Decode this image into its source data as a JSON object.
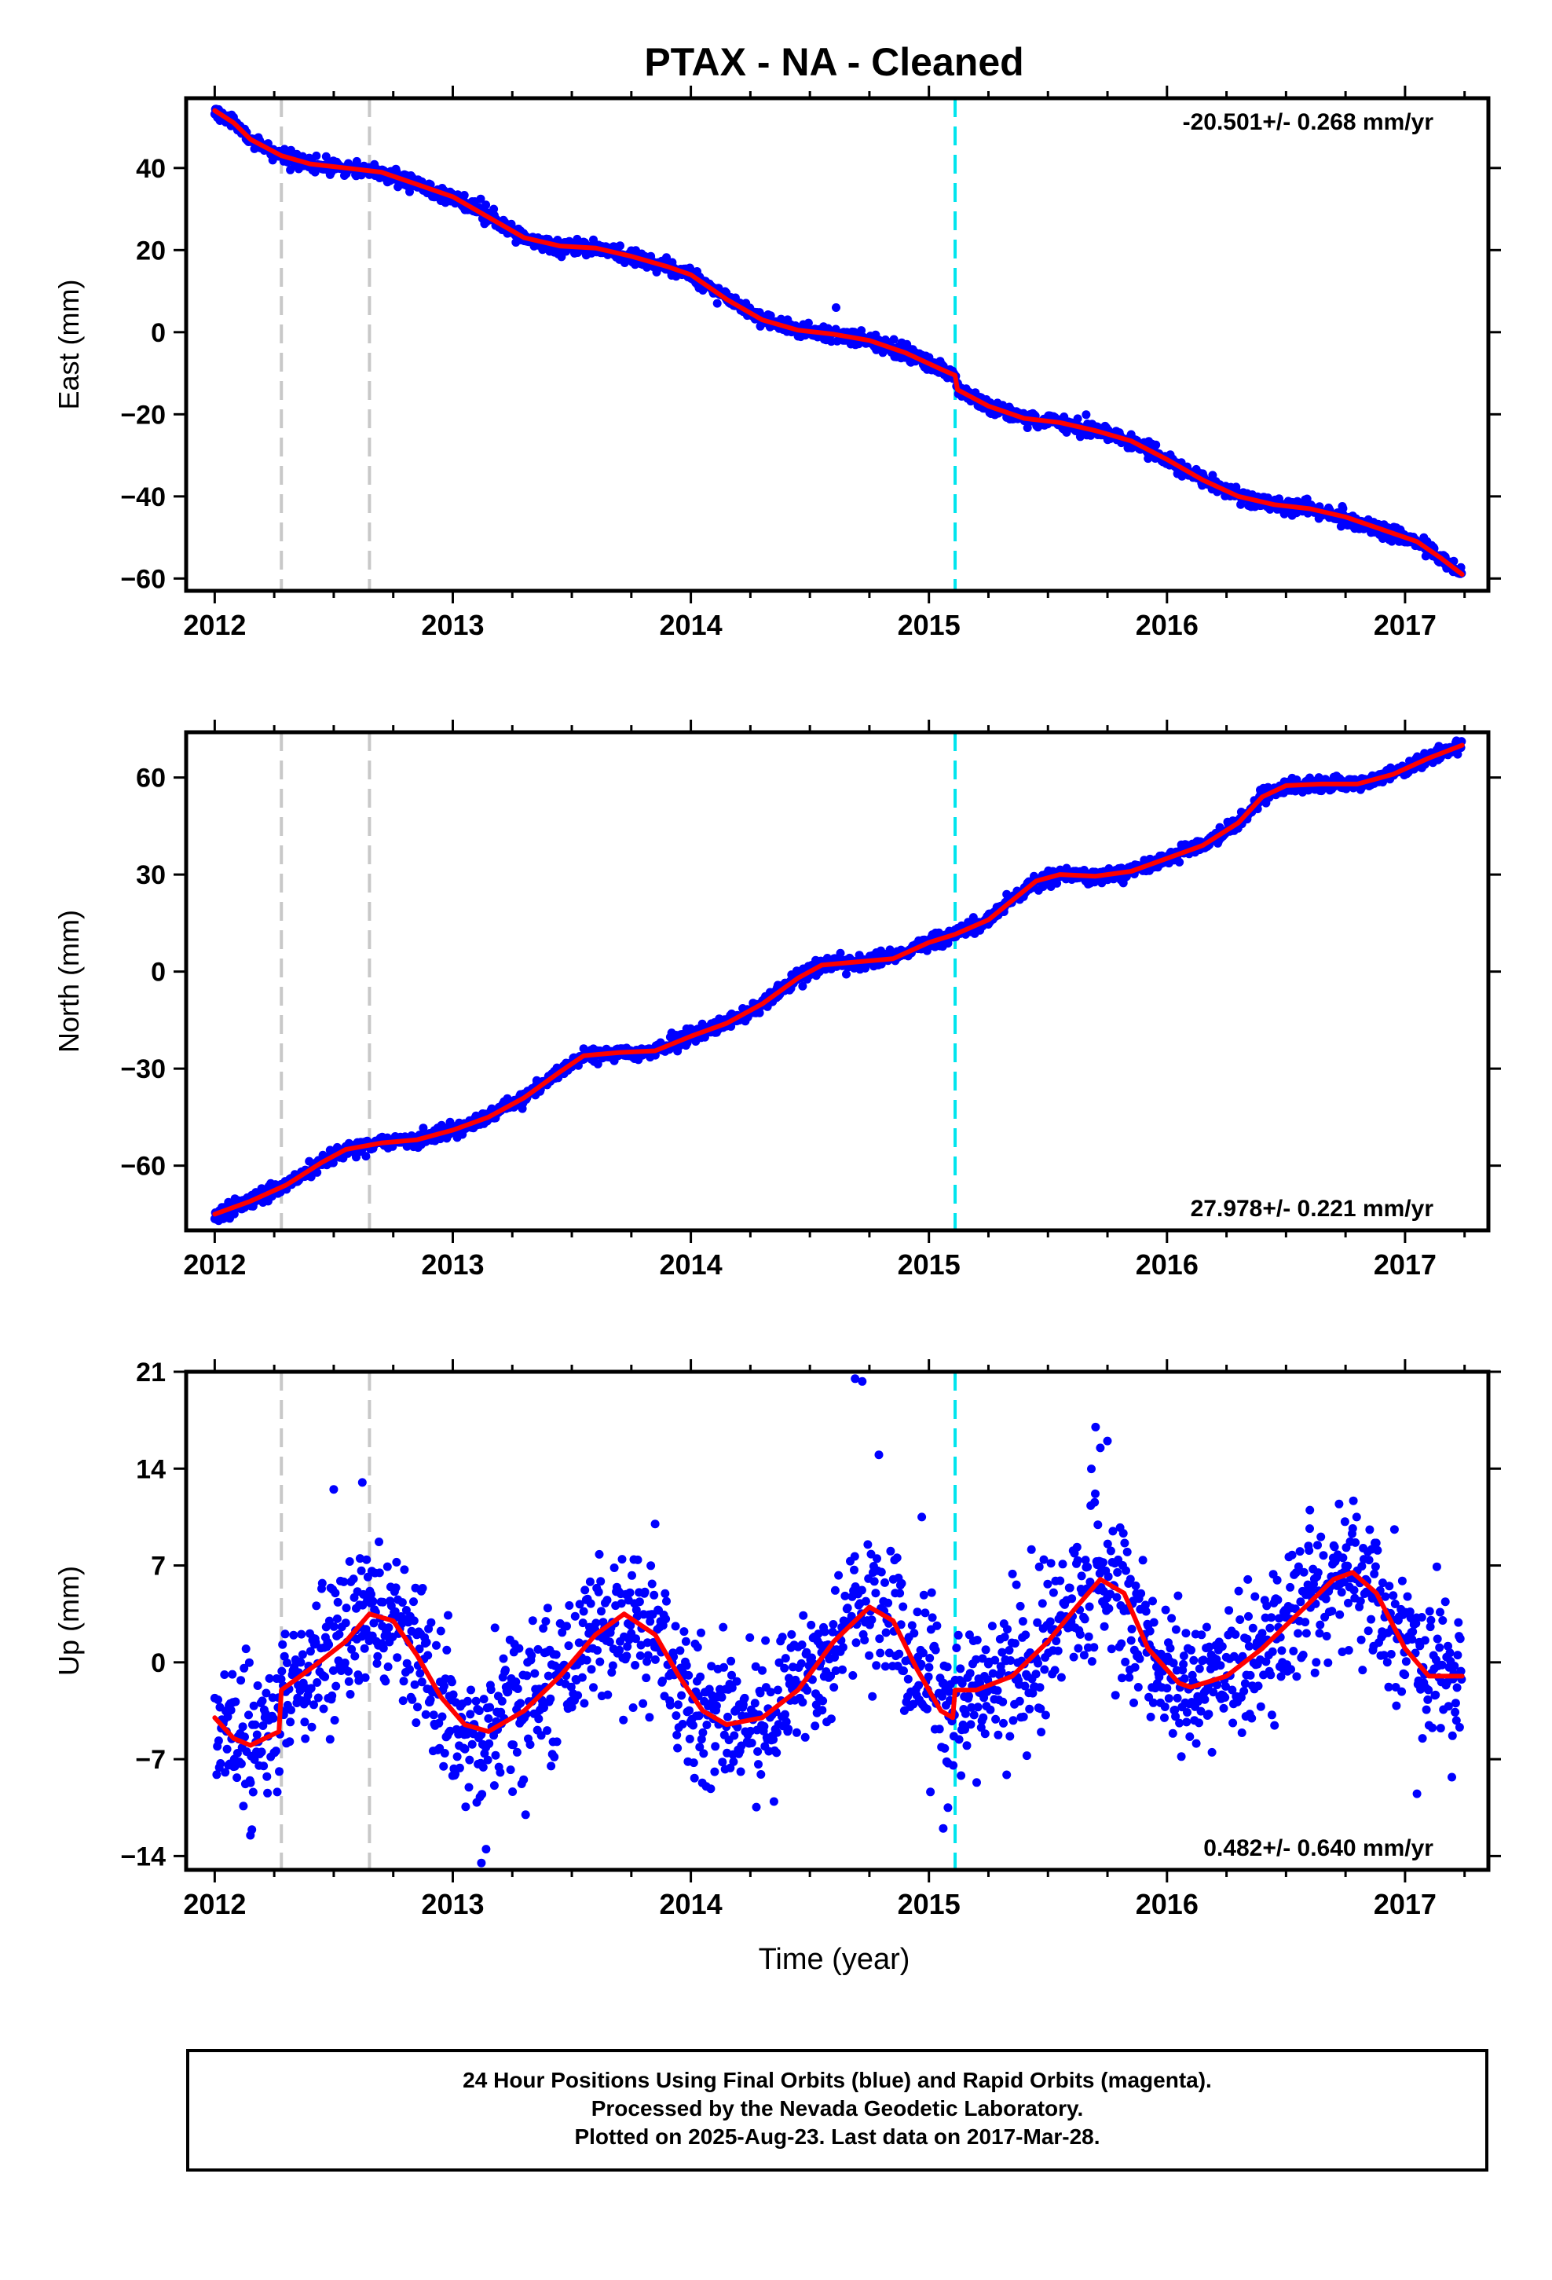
{
  "title": "PTAX  - NA - Cleaned",
  "xlabel": "Time (year)",
  "footer": {
    "line1": "24 Hour Positions Using Final Orbits (blue) and Rapid Orbits (magenta).",
    "line2": "Processed by the Nevada Geodetic Laboratory.",
    "line3": "Plotted on 2025-Aug-23. Last data on 2017-Mar-28."
  },
  "colors": {
    "data_points": "#0000ff",
    "model_fit": "#ff0000",
    "equipment_change": "#c8c8c8",
    "earthquake": "#00e5ee"
  },
  "chart_data": [
    {
      "type": "scatter",
      "ylabel": "East (mm)",
      "rate_label": "-20.501+/- 0.268 mm/yr",
      "rate_position": "top-right",
      "xlim": [
        2011.88,
        2017.35
      ],
      "ylim": [
        -63,
        57
      ],
      "xticks": [
        2012,
        2013,
        2014,
        2015,
        2016,
        2017
      ],
      "yticks": [
        -60,
        -40,
        -20,
        0,
        20,
        40
      ],
      "ytick_labels": [
        "−60",
        "−40",
        "−20",
        "0",
        "20",
        "40"
      ],
      "vlines_gray": [
        2012.28,
        2012.65
      ],
      "vlines_cyan": [
        2015.11
      ],
      "fit": [
        [
          2012.0,
          54
        ],
        [
          2012.08,
          51
        ],
        [
          2012.15,
          47
        ],
        [
          2012.28,
          43
        ],
        [
          2012.4,
          41
        ],
        [
          2012.55,
          40
        ],
        [
          2012.7,
          39
        ],
        [
          2012.85,
          36
        ],
        [
          2013.0,
          33
        ],
        [
          2013.15,
          28
        ],
        [
          2013.3,
          23
        ],
        [
          2013.45,
          21
        ],
        [
          2013.6,
          20.5
        ],
        [
          2013.75,
          18.5
        ],
        [
          2013.9,
          16
        ],
        [
          2014.0,
          14
        ],
        [
          2014.15,
          8
        ],
        [
          2014.3,
          3
        ],
        [
          2014.45,
          0.5
        ],
        [
          2014.6,
          -0.5
        ],
        [
          2014.75,
          -2
        ],
        [
          2014.9,
          -5
        ],
        [
          2015.05,
          -9
        ],
        [
          2015.11,
          -10.5
        ],
        [
          2015.12,
          -14
        ],
        [
          2015.25,
          -18
        ],
        [
          2015.4,
          -21
        ],
        [
          2015.55,
          -22
        ],
        [
          2015.7,
          -24
        ],
        [
          2015.85,
          -26.5
        ],
        [
          2016.0,
          -31
        ],
        [
          2016.15,
          -36
        ],
        [
          2016.3,
          -40
        ],
        [
          2016.45,
          -42
        ],
        [
          2016.6,
          -43
        ],
        [
          2016.75,
          -45
        ],
        [
          2016.9,
          -48
        ],
        [
          2017.05,
          -51
        ],
        [
          2017.15,
          -55
        ],
        [
          2017.24,
          -59
        ]
      ],
      "outliers": [
        [
          2014.61,
          6
        ]
      ],
      "noise_mm": 0.9,
      "seed": 11
    },
    {
      "type": "scatter",
      "ylabel": "North (mm)",
      "rate_label": "27.978+/- 0.221 mm/yr",
      "rate_position": "bottom-right",
      "xlim": [
        2011.88,
        2017.35
      ],
      "ylim": [
        -80,
        74
      ],
      "xticks": [
        2012,
        2013,
        2014,
        2015,
        2016,
        2017
      ],
      "yticks": [
        -60,
        -30,
        0,
        30,
        60
      ],
      "ytick_labels": [
        "−60",
        "−30",
        "0",
        "30",
        "60"
      ],
      "vlines_gray": [
        2012.28,
        2012.65
      ],
      "vlines_cyan": [
        2015.11
      ],
      "fit": [
        [
          2012.0,
          -75
        ],
        [
          2012.15,
          -71
        ],
        [
          2012.3,
          -66
        ],
        [
          2012.45,
          -59
        ],
        [
          2012.55,
          -55
        ],
        [
          2012.7,
          -53
        ],
        [
          2012.85,
          -52
        ],
        [
          2013.0,
          -49
        ],
        [
          2013.15,
          -45
        ],
        [
          2013.3,
          -39
        ],
        [
          2013.45,
          -31
        ],
        [
          2013.55,
          -26
        ],
        [
          2013.7,
          -25
        ],
        [
          2013.85,
          -24.5
        ],
        [
          2014.0,
          -20
        ],
        [
          2014.15,
          -16
        ],
        [
          2014.3,
          -10
        ],
        [
          2014.45,
          -2
        ],
        [
          2014.55,
          2
        ],
        [
          2014.7,
          3
        ],
        [
          2014.85,
          4
        ],
        [
          2015.0,
          9
        ],
        [
          2015.11,
          11.5
        ],
        [
          2015.25,
          16
        ],
        [
          2015.35,
          22
        ],
        [
          2015.45,
          28
        ],
        [
          2015.55,
          30
        ],
        [
          2015.7,
          29.5
        ],
        [
          2015.85,
          31
        ],
        [
          2016.0,
          35
        ],
        [
          2016.15,
          39
        ],
        [
          2016.3,
          46
        ],
        [
          2016.4,
          54
        ],
        [
          2016.5,
          57.5
        ],
        [
          2016.65,
          58
        ],
        [
          2016.8,
          58
        ],
        [
          2016.95,
          61
        ],
        [
          2017.1,
          66
        ],
        [
          2017.24,
          70
        ]
      ],
      "outliers": [],
      "noise_mm": 1.1,
      "seed": 23
    },
    {
      "type": "scatter",
      "ylabel": "Up (mm)",
      "rate_label": "0.482+/- 0.640 mm/yr",
      "rate_position": "bottom-right",
      "xlim": [
        2011.88,
        2017.35
      ],
      "ylim": [
        -15,
        21
      ],
      "xticks": [
        2012,
        2013,
        2014,
        2015,
        2016,
        2017
      ],
      "yticks": [
        -14,
        -7,
        0,
        7,
        14,
        21
      ],
      "ytick_labels": [
        "−14",
        "−7",
        "0",
        "7",
        "14",
        "21"
      ],
      "vlines_gray": [
        2012.28,
        2012.65
      ],
      "vlines_cyan": [
        2015.11
      ],
      "fit": [
        [
          2012.0,
          -4
        ],
        [
          2012.08,
          -5.5
        ],
        [
          2012.15,
          -6
        ],
        [
          2012.27,
          -5
        ],
        [
          2012.28,
          -2
        ],
        [
          2012.4,
          -0.5
        ],
        [
          2012.55,
          1.5
        ],
        [
          2012.65,
          3.5
        ],
        [
          2012.75,
          3
        ],
        [
          2012.85,
          0.5
        ],
        [
          2012.95,
          -2.5
        ],
        [
          2013.05,
          -4.5
        ],
        [
          2013.15,
          -5
        ],
        [
          2013.3,
          -3.5
        ],
        [
          2013.45,
          -1
        ],
        [
          2013.6,
          2
        ],
        [
          2013.72,
          3.5
        ],
        [
          2013.85,
          2
        ],
        [
          2013.95,
          -1
        ],
        [
          2014.05,
          -3.5
        ],
        [
          2014.15,
          -4.5
        ],
        [
          2014.3,
          -4
        ],
        [
          2014.45,
          -2
        ],
        [
          2014.6,
          1.5
        ],
        [
          2014.75,
          4
        ],
        [
          2014.85,
          3
        ],
        [
          2014.95,
          -0.5
        ],
        [
          2015.05,
          -3.5
        ],
        [
          2015.1,
          -4
        ],
        [
          2015.11,
          -2
        ],
        [
          2015.2,
          -2
        ],
        [
          2015.35,
          -1
        ],
        [
          2015.5,
          1.5
        ],
        [
          2015.62,
          4
        ],
        [
          2015.72,
          6
        ],
        [
          2015.82,
          5
        ],
        [
          2015.92,
          1
        ],
        [
          2016.05,
          -1.5
        ],
        [
          2016.1,
          -1.8
        ],
        [
          2016.25,
          -1
        ],
        [
          2016.4,
          1
        ],
        [
          2016.55,
          3.5
        ],
        [
          2016.7,
          6
        ],
        [
          2016.78,
          6.5
        ],
        [
          2016.88,
          5
        ],
        [
          2017.0,
          1
        ],
        [
          2017.1,
          -1
        ],
        [
          2017.24,
          -1
        ]
      ],
      "outliers": [
        [
          2014.69,
          20.5
        ],
        [
          2014.72,
          20.3
        ],
        [
          2014.79,
          15
        ],
        [
          2014.97,
          10.5
        ],
        [
          2012.5,
          12.5
        ],
        [
          2012.62,
          13
        ],
        [
          2013.85,
          10
        ],
        [
          2015.7,
          17
        ],
        [
          2015.72,
          15.5
        ],
        [
          2015.75,
          16
        ],
        [
          2013.12,
          -14.5
        ],
        [
          2013.14,
          -13.5
        ],
        [
          2012.15,
          -12.5
        ],
        [
          2015.06,
          -12
        ],
        [
          2015.08,
          -10.5
        ],
        [
          2016.6,
          11
        ],
        [
          2017.05,
          -9.5
        ]
      ],
      "noise_mm": 2.6,
      "seed": 37
    }
  ]
}
